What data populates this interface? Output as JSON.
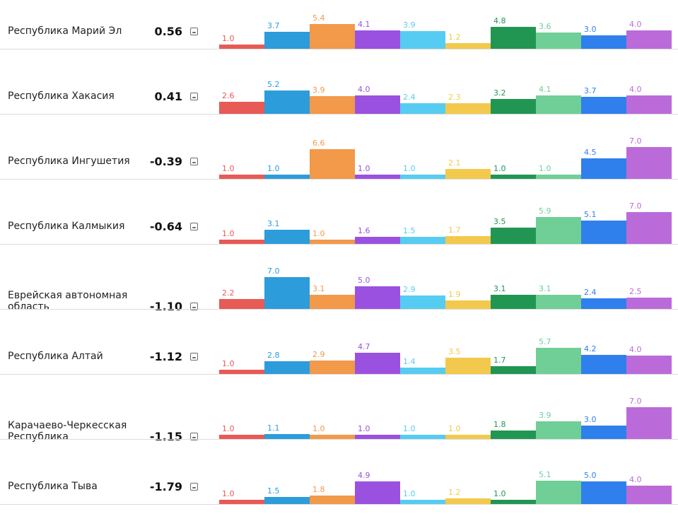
{
  "chart_data": {
    "type": "bar",
    "title": "",
    "xlabel": "",
    "ylabel": "",
    "ylim": [
      0,
      7
    ],
    "colors": [
      "#e85a55",
      "#2d9cdb",
      "#f2994a",
      "#9b51e0",
      "#56ccf2",
      "#f2c94c",
      "#219653",
      "#6fcf97",
      "#2f80ed",
      "#bb6bd9"
    ],
    "label_colors": [
      "#e85a55",
      "#2d9cdb",
      "#f2994a",
      "#9b51e0",
      "#56ccf2",
      "#f2c94c",
      "#219653",
      "#6fcf97",
      "#2f80ed",
      "#bb6bd9"
    ],
    "rows": [
      {
        "region": "Республика Марий Эл",
        "score": "0.56",
        "values": [
          1.0,
          3.7,
          5.4,
          4.1,
          3.9,
          1.2,
          4.8,
          3.6,
          3.0,
          4.0
        ]
      },
      {
        "region": "Республика Хакасия",
        "score": "0.41",
        "values": [
          2.6,
          5.2,
          3.9,
          4.0,
          2.4,
          2.3,
          3.2,
          4.1,
          3.7,
          4.0
        ]
      },
      {
        "region": "Республика Ингушетия",
        "score": "-0.39",
        "values": [
          1.0,
          1.0,
          6.6,
          1.0,
          1.0,
          2.1,
          1.0,
          1.0,
          4.5,
          7.0
        ]
      },
      {
        "region": "Республика Калмыкия",
        "score": "-0.64",
        "values": [
          1.0,
          3.1,
          1.0,
          1.6,
          1.5,
          1.7,
          3.5,
          5.9,
          5.1,
          7.0
        ]
      },
      {
        "region": "Еврейская автономная область",
        "score": "-1.10",
        "values": [
          2.2,
          7.0,
          3.1,
          5.0,
          2.9,
          1.9,
          3.1,
          3.1,
          2.4,
          2.5
        ]
      },
      {
        "region": "Республика Алтай",
        "score": "-1.12",
        "values": [
          1.0,
          2.8,
          2.9,
          4.7,
          1.4,
          3.5,
          1.7,
          5.7,
          4.2,
          4.0
        ]
      },
      {
        "region": "Карачаево-Черкесская Республика",
        "score": "-1.15",
        "values": [
          1.0,
          1.1,
          1.0,
          1.0,
          1.0,
          1.0,
          1.8,
          3.9,
          3.0,
          7.0
        ]
      },
      {
        "region": "Республика Тыва",
        "score": "-1.79",
        "values": [
          1.0,
          1.5,
          1.8,
          4.9,
          1.0,
          1.2,
          1.0,
          5.1,
          5.0,
          4.0
        ]
      }
    ]
  }
}
